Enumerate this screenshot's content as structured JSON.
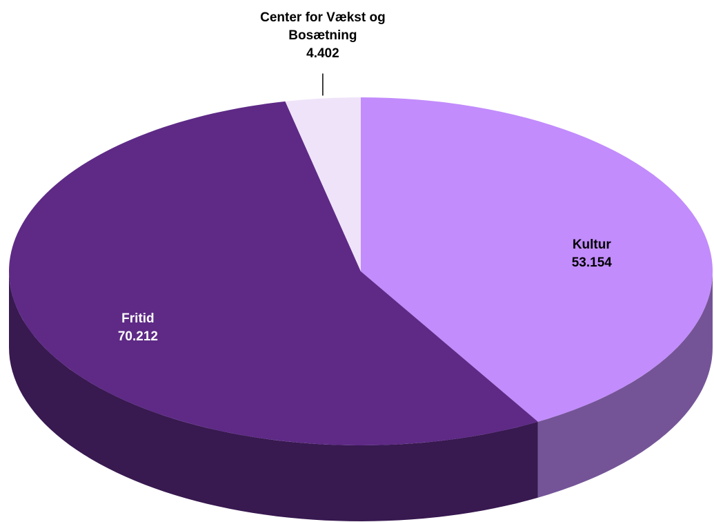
{
  "chart_data": {
    "type": "pie3d",
    "categories": [
      "Kultur",
      "Fritid",
      "Center for Vækst og Bosætning"
    ],
    "values": [
      53.154,
      70.212,
      4.402
    ],
    "colors": [
      "#c28cfc",
      "#5e2a86",
      "#efe3fa"
    ]
  }
}
